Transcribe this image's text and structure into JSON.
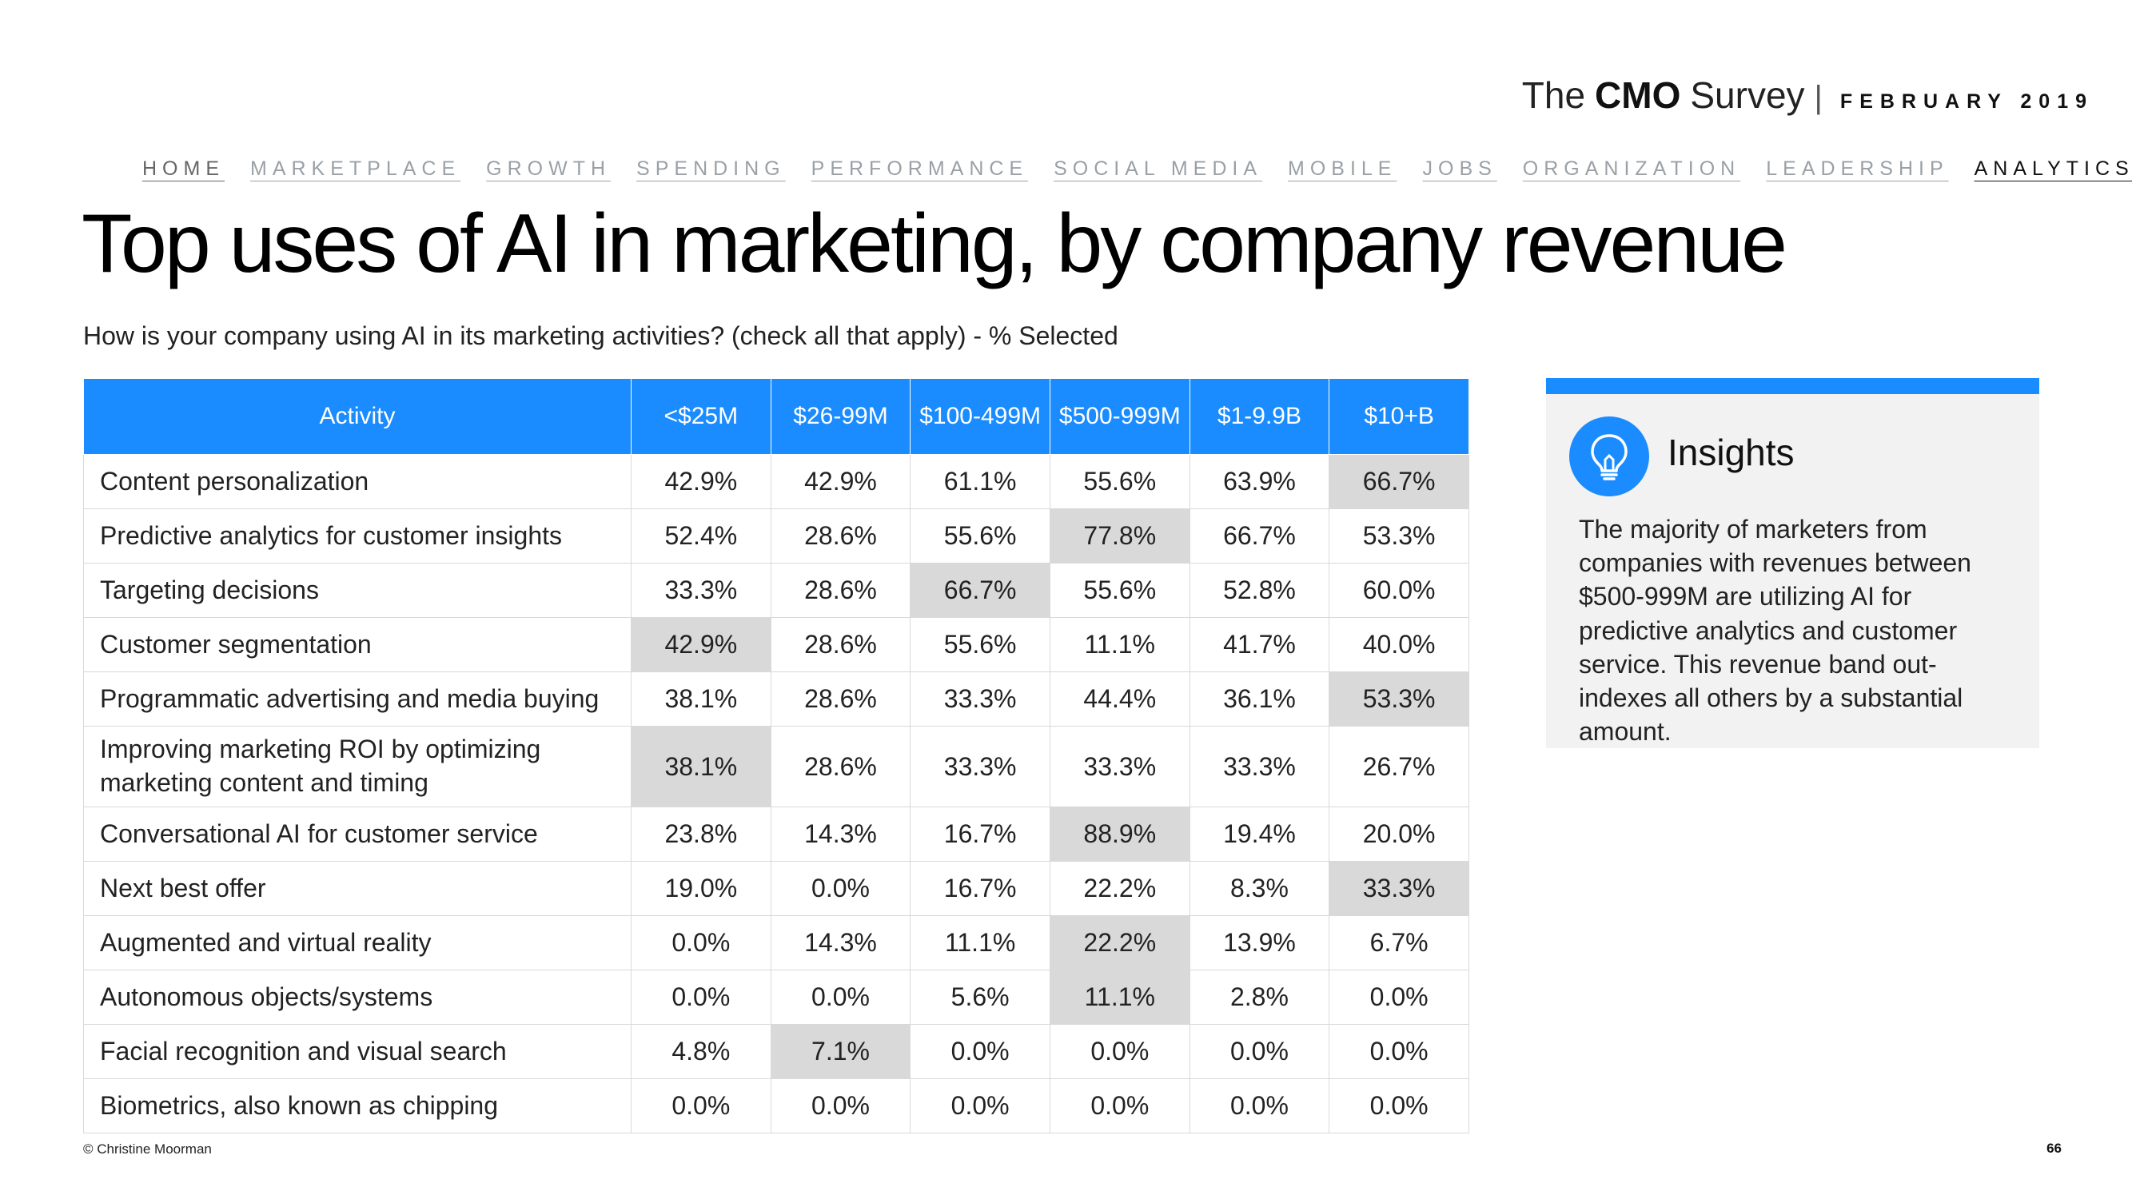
{
  "brand": {
    "the": "The",
    "cmo": "CMO",
    "survey": "Survey",
    "separator": "|",
    "date": "FEBRUARY 2019"
  },
  "nav": [
    "HOME",
    "MARKETPLACE",
    "GROWTH",
    "SPENDING",
    "PERFORMANCE",
    "SOCIAL MEDIA",
    "MOBILE",
    "JOBS",
    "ORGANIZATION",
    "LEADERSHIP",
    "ANALYTICS"
  ],
  "nav_active": "ANALYTICS",
  "title": "Top uses of AI in marketing, by company revenue",
  "subtitle": "How is your company using AI in its marketing activities? (check all that apply) - % Selected",
  "table": {
    "headers": [
      "Activity",
      "<$25M",
      "$26-99M",
      "$100-499M",
      "$500-999M",
      "$1-9.9B",
      "$10+B"
    ],
    "rows": [
      {
        "activity": "Content personalization",
        "values": [
          "42.9%",
          "42.9%",
          "61.1%",
          "55.6%",
          "63.9%",
          "66.7%"
        ],
        "highlight": 5
      },
      {
        "activity": "Predictive analytics for customer insights",
        "values": [
          "52.4%",
          "28.6%",
          "55.6%",
          "77.8%",
          "66.7%",
          "53.3%"
        ],
        "highlight": 3
      },
      {
        "activity": "Targeting decisions",
        "values": [
          "33.3%",
          "28.6%",
          "66.7%",
          "55.6%",
          "52.8%",
          "60.0%"
        ],
        "highlight": 2
      },
      {
        "activity": "Customer segmentation",
        "values": [
          "42.9%",
          "28.6%",
          "55.6%",
          "11.1%",
          "41.7%",
          "40.0%"
        ],
        "highlight": 0
      },
      {
        "activity": "Programmatic advertising and media buying",
        "values": [
          "38.1%",
          "28.6%",
          "33.3%",
          "44.4%",
          "36.1%",
          "53.3%"
        ],
        "highlight": 5
      },
      {
        "activity": "Improving marketing ROI by optimizing marketing content and timing",
        "values": [
          "38.1%",
          "28.6%",
          "33.3%",
          "33.3%",
          "33.3%",
          "26.7%"
        ],
        "highlight": 0
      },
      {
        "activity": "Conversational AI for customer service",
        "values": [
          "23.8%",
          "14.3%",
          "16.7%",
          "88.9%",
          "19.4%",
          "20.0%"
        ],
        "highlight": 3
      },
      {
        "activity": "Next best offer",
        "values": [
          "19.0%",
          "0.0%",
          "16.7%",
          "22.2%",
          "8.3%",
          "33.3%"
        ],
        "highlight": 5
      },
      {
        "activity": "Augmented and virtual reality",
        "values": [
          "0.0%",
          "14.3%",
          "11.1%",
          "22.2%",
          "13.9%",
          "6.7%"
        ],
        "highlight": 3
      },
      {
        "activity": "Autonomous objects/systems",
        "values": [
          "0.0%",
          "0.0%",
          "5.6%",
          "11.1%",
          "2.8%",
          "0.0%"
        ],
        "highlight": 3
      },
      {
        "activity": "Facial recognition and visual search",
        "values": [
          "4.8%",
          "7.1%",
          "0.0%",
          "0.0%",
          "0.0%",
          "0.0%"
        ],
        "highlight": 1
      },
      {
        "activity": "Biometrics, also known as chipping",
        "values": [
          "0.0%",
          "0.0%",
          "0.0%",
          "0.0%",
          "0.0%",
          "0.0%"
        ],
        "highlight": -1
      }
    ]
  },
  "insights": {
    "icon": "lightbulb-icon",
    "heading": "Insights",
    "body": "The majority of marketers from companies with revenues between $500-999M are utilizing AI for predictive analytics and customer service. This revenue band out-indexes all others by a substantial amount."
  },
  "footer": {
    "copyright": "© Christine Moorman",
    "page": "66"
  },
  "colors": {
    "accent": "#1a8cff",
    "highlight": "#d9d9d9",
    "panel": "#f2f2f2"
  }
}
